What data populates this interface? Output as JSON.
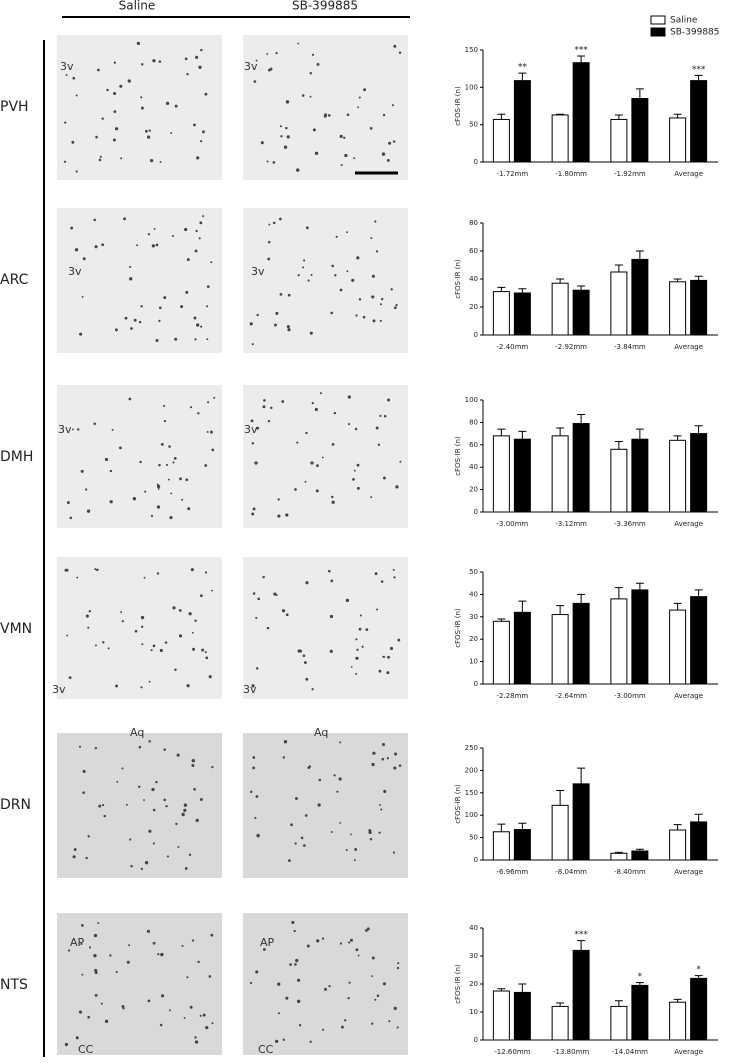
{
  "header": {
    "columns": [
      "Saline",
      "SB-399885"
    ]
  },
  "images": [
    {
      "left": [
        "3v"
      ],
      "right": [
        "3v"
      ]
    },
    {
      "left": [
        "3v"
      ],
      "right": [
        "3v"
      ]
    },
    {
      "left": [
        "3v"
      ],
      "right": [
        "3v"
      ]
    },
    {
      "left": [
        "3v"
      ],
      "right": [
        "3v"
      ]
    },
    {
      "left": [
        "Aq"
      ],
      "right": [
        "Aq"
      ]
    },
    {
      "left": [
        "AP",
        "CC"
      ],
      "right": [
        "AP",
        "CC"
      ]
    }
  ],
  "chart_data": [
    {
      "type": "bar",
      "title": "PVH",
      "y_label": "cFOS-IR (n)",
      "categories": [
        "-1.72mm",
        "-1.80mm",
        "-1.92mm",
        "Average"
      ],
      "series": [
        {
          "name": "Saline",
          "color": "#ffffff",
          "values": [
            57,
            63,
            57,
            59
          ],
          "errors": [
            7,
            1,
            6,
            5
          ]
        },
        {
          "name": "SB-399885",
          "color": "#000000",
          "values": [
            109,
            133,
            85,
            109
          ],
          "errors": [
            10,
            9,
            13,
            7
          ]
        }
      ],
      "significance": [
        "**",
        "***",
        null,
        "***"
      ],
      "ylim": [
        0,
        150
      ],
      "yticks": [
        0,
        50,
        100,
        150
      ]
    },
    {
      "type": "bar",
      "title": "ARC",
      "y_label": "cFOS-IR (n)",
      "categories": [
        "-2.40mm",
        "-2.92mm",
        "-3.84mm",
        "Average"
      ],
      "series": [
        {
          "color": "#ffffff",
          "values": [
            31,
            37,
            45,
            38
          ],
          "errors": [
            3,
            3,
            5,
            2
          ]
        },
        {
          "color": "#000000",
          "values": [
            30,
            32,
            54,
            39
          ],
          "errors": [
            3,
            3,
            6,
            3
          ]
        }
      ],
      "ylim": [
        0,
        80
      ],
      "yticks": [
        0,
        20,
        40,
        60,
        80
      ]
    },
    {
      "type": "bar",
      "title": "DMH",
      "y_label": "cFOS-IR (n)",
      "categories": [
        "-3.00mm",
        "-3.12mm",
        "-3.36mm",
        "Average"
      ],
      "series": [
        {
          "color": "#ffffff",
          "values": [
            68,
            68,
            56,
            64
          ],
          "errors": [
            6,
            7,
            7,
            4
          ]
        },
        {
          "color": "#000000",
          "values": [
            65,
            79,
            65,
            70
          ],
          "errors": [
            7,
            8,
            9,
            7
          ]
        }
      ],
      "ylim": [
        0,
        100
      ],
      "yticks": [
        0,
        20,
        40,
        60,
        80,
        100
      ]
    },
    {
      "type": "bar",
      "title": "VMN",
      "y_label": "cFOS-IR (n)",
      "categories": [
        "-2.28mm",
        "-2.64mm",
        "-3.00mm",
        "Average"
      ],
      "series": [
        {
          "color": "#ffffff",
          "values": [
            28,
            31,
            38,
            33
          ],
          "errors": [
            1,
            4,
            5,
            3
          ]
        },
        {
          "color": "#000000",
          "values": [
            32,
            36,
            42,
            39
          ],
          "errors": [
            5,
            4,
            3,
            3
          ]
        }
      ],
      "ylim": [
        0,
        50
      ],
      "yticks": [
        0,
        10,
        20,
        30,
        40,
        50
      ]
    },
    {
      "type": "bar",
      "title": "DRN",
      "y_label": "cFOS-IR (n)",
      "categories": [
        "-6.96mm",
        "-8.04mm",
        "-8.40mm",
        "Average"
      ],
      "series": [
        {
          "color": "#ffffff",
          "values": [
            63,
            122,
            15,
            67
          ],
          "errors": [
            17,
            33,
            2,
            12
          ]
        },
        {
          "color": "#000000",
          "values": [
            68,
            170,
            20,
            85
          ],
          "errors": [
            14,
            35,
            4,
            17
          ]
        }
      ],
      "ylim": [
        0,
        250
      ],
      "yticks": [
        0,
        50,
        100,
        150,
        200,
        250
      ]
    },
    {
      "type": "bar",
      "title": "NTS",
      "y_label": "cFOS-IR (n)",
      "categories": [
        "-12.60mm",
        "-13.80mm",
        "-14.04mm",
        "Average"
      ],
      "series": [
        {
          "color": "#ffffff",
          "values": [
            17.5,
            12,
            12,
            13.5
          ],
          "errors": [
            0.8,
            1.2,
            2,
            1
          ]
        },
        {
          "color": "#000000",
          "values": [
            17,
            32,
            19.5,
            22
          ],
          "errors": [
            3,
            3.5,
            1,
            1
          ]
        }
      ],
      "significance": [
        null,
        "***",
        "*",
        "*"
      ],
      "ylim": [
        0,
        40
      ],
      "yticks": [
        0,
        10,
        20,
        30,
        40
      ]
    }
  ]
}
